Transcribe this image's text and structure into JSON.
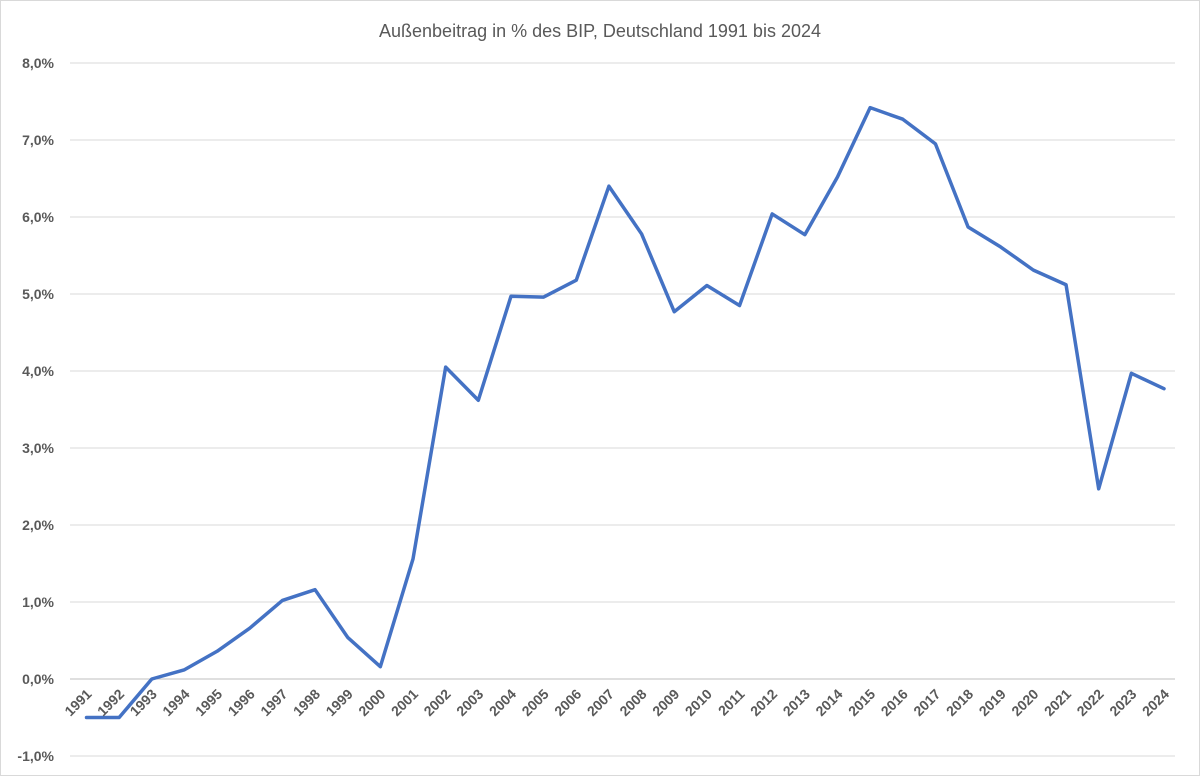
{
  "chart_data": {
    "type": "line",
    "title": "Außenbeitrag  in % des BIP, Deutschland 1991 bis 2024",
    "xlabel": "",
    "ylabel": "",
    "ylim": [
      -1.0,
      8.0
    ],
    "yticks": [
      -1,
      0,
      1,
      2,
      3,
      4,
      5,
      6,
      7,
      8
    ],
    "ytick_labels": [
      "-1,0%",
      "0,0%",
      "1,0%",
      "2,0%",
      "3,0%",
      "4,0%",
      "5,0%",
      "6,0%",
      "7,0%",
      "8,0%"
    ],
    "grid": true,
    "legend": "none",
    "categories": [
      "1991",
      "1992",
      "1993",
      "1994",
      "1995",
      "1996",
      "1997",
      "1998",
      "1999",
      "2000",
      "2001",
      "2002",
      "2003",
      "2004",
      "2005",
      "2006",
      "2007",
      "2008",
      "2009",
      "2010",
      "2011",
      "2012",
      "2013",
      "2014",
      "2015",
      "2016",
      "2017",
      "2018",
      "2019",
      "2020",
      "2021",
      "2022",
      "2023",
      "2024"
    ],
    "series": [
      {
        "color": "#4472c4",
        "values": [
          -0.5,
          -0.5,
          0.0,
          0.12,
          0.36,
          0.66,
          1.02,
          1.16,
          0.54,
          0.16,
          1.56,
          4.05,
          3.62,
          4.97,
          4.96,
          5.18,
          6.4,
          5.78,
          4.77,
          5.11,
          4.85,
          6.04,
          5.77,
          6.52,
          7.42,
          7.27,
          6.95,
          5.87,
          5.61,
          5.31,
          5.12,
          2.47,
          3.97,
          3.77
        ]
      }
    ]
  }
}
